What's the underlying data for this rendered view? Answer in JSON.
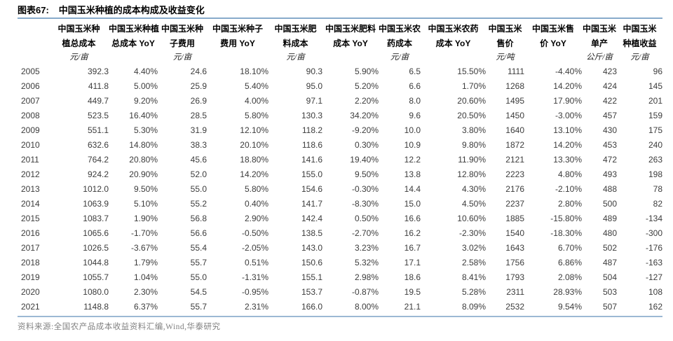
{
  "figure": {
    "label": "图表67:",
    "title": "中国玉米种植的成本构成及收益变化"
  },
  "footer": {
    "source": "资料来源:全国农产品成本收益资料汇编,Wind,华泰研究"
  },
  "colors": {
    "rule_top": "#88aacb",
    "rule_bottom": "#9cb9d4",
    "data_text": "#3c3c3c",
    "source_text": "#828282"
  },
  "chart_data": {
    "type": "table",
    "title": "中国玉米种植的成本构成及收益变化",
    "columns": [
      {
        "label": "中国玉米种植总成本",
        "line1": "中国玉米种",
        "line2": "植总成本",
        "unit": "元/亩"
      },
      {
        "label": "中国玉米种植总成本 YoY",
        "line1": "中国玉米种植",
        "line2": "总成本 YoY",
        "unit": ""
      },
      {
        "label": "中国玉米种子费用",
        "line1": "中国玉米种",
        "line2": "子费用",
        "unit": "元/亩"
      },
      {
        "label": "中国玉米种子费用 YoY",
        "line1": "中国玉米种子",
        "line2": "费用 YoY",
        "unit": ""
      },
      {
        "label": "中国玉米肥料成本",
        "line1": "中国玉米肥",
        "line2": "料成本",
        "unit": "元/亩"
      },
      {
        "label": "中国玉米肥料成本 YoY",
        "line1": "中国玉米肥料",
        "line2": "成本 YoY",
        "unit": ""
      },
      {
        "label": "中国玉米农药成本",
        "line1": "中国玉米农",
        "line2": "药成本",
        "unit": "元/亩"
      },
      {
        "label": "中国玉米农药成本 YoY",
        "line1": "中国玉米农药",
        "line2": "成本 YoY",
        "unit": ""
      },
      {
        "label": "中国玉米售价",
        "line1": "中国玉米",
        "line2": "售价",
        "unit": "元/吨"
      },
      {
        "label": "中国玉米售价 YoY",
        "line1": "中国玉米售",
        "line2": "价 YoY",
        "unit": ""
      },
      {
        "label": "中国玉米单产",
        "line1": "中国玉米",
        "line2": "单产",
        "unit": "公斤/亩"
      },
      {
        "label": "中国玉米种植收益",
        "line1": "中国玉米",
        "line2": "种植收益",
        "unit": "元/亩"
      }
    ],
    "rows": [
      {
        "year": "2005",
        "values": [
          "392.3",
          "4.40%",
          "24.6",
          "18.10%",
          "90.3",
          "5.90%",
          "6.5",
          "15.50%",
          "1111",
          "-4.40%",
          "423",
          "96"
        ]
      },
      {
        "year": "2006",
        "values": [
          "411.8",
          "5.00%",
          "25.9",
          "5.40%",
          "95.0",
          "5.20%",
          "6.6",
          "1.70%",
          "1268",
          "14.20%",
          "424",
          "145"
        ]
      },
      {
        "year": "2007",
        "values": [
          "449.7",
          "9.20%",
          "26.9",
          "4.00%",
          "97.1",
          "2.20%",
          "8.0",
          "20.60%",
          "1495",
          "17.90%",
          "422",
          "201"
        ]
      },
      {
        "year": "2008",
        "values": [
          "523.5",
          "16.40%",
          "28.5",
          "5.80%",
          "130.3",
          "34.20%",
          "9.6",
          "20.50%",
          "1450",
          "-3.00%",
          "457",
          "159"
        ]
      },
      {
        "year": "2009",
        "values": [
          "551.1",
          "5.30%",
          "31.9",
          "12.10%",
          "118.2",
          "-9.20%",
          "10.0",
          "3.80%",
          "1640",
          "13.10%",
          "430",
          "175"
        ]
      },
      {
        "year": "2010",
        "values": [
          "632.6",
          "14.80%",
          "38.3",
          "20.10%",
          "118.6",
          "0.30%",
          "10.9",
          "9.80%",
          "1872",
          "14.20%",
          "453",
          "240"
        ]
      },
      {
        "year": "2011",
        "values": [
          "764.2",
          "20.80%",
          "45.6",
          "18.80%",
          "141.6",
          "19.40%",
          "12.2",
          "11.90%",
          "2121",
          "13.30%",
          "472",
          "263"
        ]
      },
      {
        "year": "2012",
        "values": [
          "924.2",
          "20.90%",
          "52.0",
          "14.20%",
          "155.0",
          "9.50%",
          "13.8",
          "12.80%",
          "2223",
          "4.80%",
          "493",
          "198"
        ]
      },
      {
        "year": "2013",
        "values": [
          "1012.0",
          "9.50%",
          "55.0",
          "5.80%",
          "154.6",
          "-0.30%",
          "14.4",
          "4.30%",
          "2176",
          "-2.10%",
          "488",
          "78"
        ]
      },
      {
        "year": "2014",
        "values": [
          "1063.9",
          "5.10%",
          "55.2",
          "0.40%",
          "141.7",
          "-8.30%",
          "15.0",
          "4.50%",
          "2237",
          "2.80%",
          "500",
          "82"
        ]
      },
      {
        "year": "2015",
        "values": [
          "1083.7",
          "1.90%",
          "56.8",
          "2.90%",
          "142.4",
          "0.50%",
          "16.6",
          "10.60%",
          "1885",
          "-15.80%",
          "489",
          "-134"
        ]
      },
      {
        "year": "2016",
        "values": [
          "1065.6",
          "-1.70%",
          "56.6",
          "-0.50%",
          "138.5",
          "-2.70%",
          "16.2",
          "-2.30%",
          "1540",
          "-18.30%",
          "480",
          "-300"
        ]
      },
      {
        "year": "2017",
        "values": [
          "1026.5",
          "-3.67%",
          "55.4",
          "-2.05%",
          "143.0",
          "3.23%",
          "16.7",
          "3.02%",
          "1643",
          "6.70%",
          "502",
          "-176"
        ]
      },
      {
        "year": "2018",
        "values": [
          "1044.8",
          "1.79%",
          "55.7",
          "0.51%",
          "150.6",
          "5.32%",
          "17.1",
          "2.58%",
          "1756",
          "6.86%",
          "487",
          "-163"
        ]
      },
      {
        "year": "2019",
        "values": [
          "1055.7",
          "1.04%",
          "55.0",
          "-1.31%",
          "155.1",
          "2.98%",
          "18.6",
          "8.41%",
          "1793",
          "2.08%",
          "504",
          "-127"
        ]
      },
      {
        "year": "2020",
        "values": [
          "1080.0",
          "2.30%",
          "54.5",
          "-0.95%",
          "153.7",
          "-0.87%",
          "19.5",
          "5.28%",
          "2311",
          "28.93%",
          "503",
          "108"
        ]
      },
      {
        "year": "2021",
        "values": [
          "1148.8",
          "6.37%",
          "55.7",
          "2.31%",
          "166.0",
          "8.00%",
          "21.1",
          "8.09%",
          "2532",
          "9.54%",
          "507",
          "162"
        ]
      }
    ]
  }
}
